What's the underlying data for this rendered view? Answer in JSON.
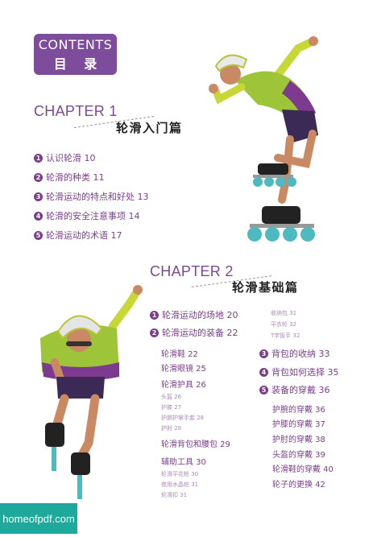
{
  "header": {
    "contents_en": "CONTENTS",
    "contents_zh": "目 录"
  },
  "chapter1": {
    "title_en": "CHAPTER 1",
    "title_zh": "轮滑入门篇",
    "items": [
      {
        "num": "1",
        "label": "认识轮滑 10"
      },
      {
        "num": "2",
        "label": "轮滑的种类 11"
      },
      {
        "num": "3",
        "label": "轮滑运动的特点和好处 13"
      },
      {
        "num": "4",
        "label": "轮滑的安全注意事项 14"
      },
      {
        "num": "5",
        "label": "轮滑运动的术语 17"
      }
    ]
  },
  "chapter2": {
    "title_en": "CHAPTER 2",
    "title_zh": "轮滑基础篇",
    "item1": {
      "num": "1",
      "label": "轮滑运动的场地 20"
    },
    "item2": {
      "num": "2",
      "label": "轮滑运动的装备 22"
    },
    "sub_left": [
      "轮滑鞋 22",
      "轮滑眼镜 25",
      "轮滑护具 26"
    ],
    "tiny_protect": [
      "头盔 26",
      "护膝 27",
      "护腕护掌手套 28",
      "护肘 28"
    ],
    "sub_bag": "轮滑背包和腰包 29",
    "sub_tools": "辅助工具 30",
    "tiny_tools": [
      "轮滑平花桩 30",
      "夜用水晶桩 31",
      "轮滑扣 31"
    ],
    "tiny_right": [
      "收纳包 31",
      "平衣轮 32",
      "T字扳手 32"
    ],
    "item3": {
      "num": "3",
      "label": "背包的收纳 33"
    },
    "item4": {
      "num": "4",
      "label": "背包如何选择 35"
    },
    "item5": {
      "num": "5",
      "label": "装备的穿戴 36"
    },
    "sub_right": [
      "护腕的穿戴 36",
      "护膝的穿戴 37",
      "护肘的穿戴 38",
      "头盔的穿戴 39",
      "轮滑鞋的穿戴 40",
      "轮子的更换 42"
    ]
  },
  "watermark": "homeofpdf.com"
}
